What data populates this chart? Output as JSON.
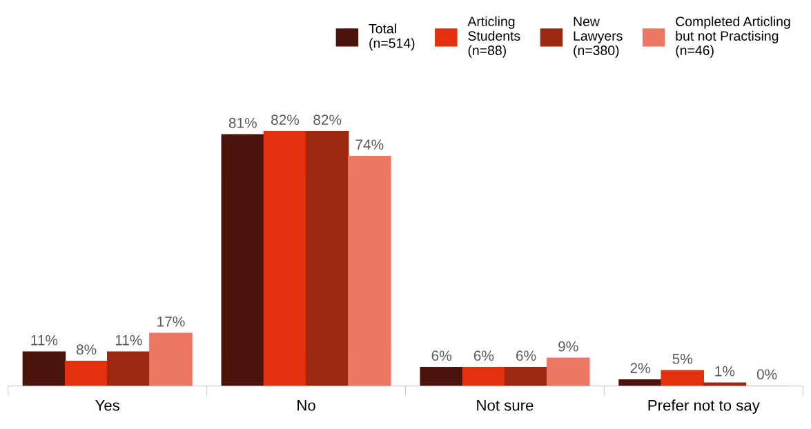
{
  "chart_data": {
    "type": "bar",
    "categories": [
      "Yes",
      "No",
      "Not sure",
      "Prefer not to say"
    ],
    "series": [
      {
        "name": "Total\n(n=514)",
        "color": "#4a130b",
        "values": [
          11,
          81,
          6,
          2
        ],
        "value_labels": [
          "11%",
          "81%",
          "6%",
          "2%"
        ]
      },
      {
        "name": "Articling\nStudents\n(n=88)",
        "color": "#e3300f",
        "values": [
          8,
          82,
          6,
          5
        ],
        "value_labels": [
          "8%",
          "82%",
          "6%",
          "5%"
        ]
      },
      {
        "name": "New\nLawyers\n(n=380)",
        "color": "#9c2812",
        "values": [
          11,
          82,
          6,
          1
        ],
        "value_labels": [
          "11%",
          "82%",
          "6%",
          "1%"
        ]
      },
      {
        "name": "Completed Articling\nbut not Practising\n(n=46)",
        "color": "#ec7763",
        "values": [
          17,
          74,
          9,
          0
        ],
        "value_labels": [
          "17%",
          "74%",
          "9%",
          "0%"
        ]
      }
    ],
    "legend": "top right"
  }
}
